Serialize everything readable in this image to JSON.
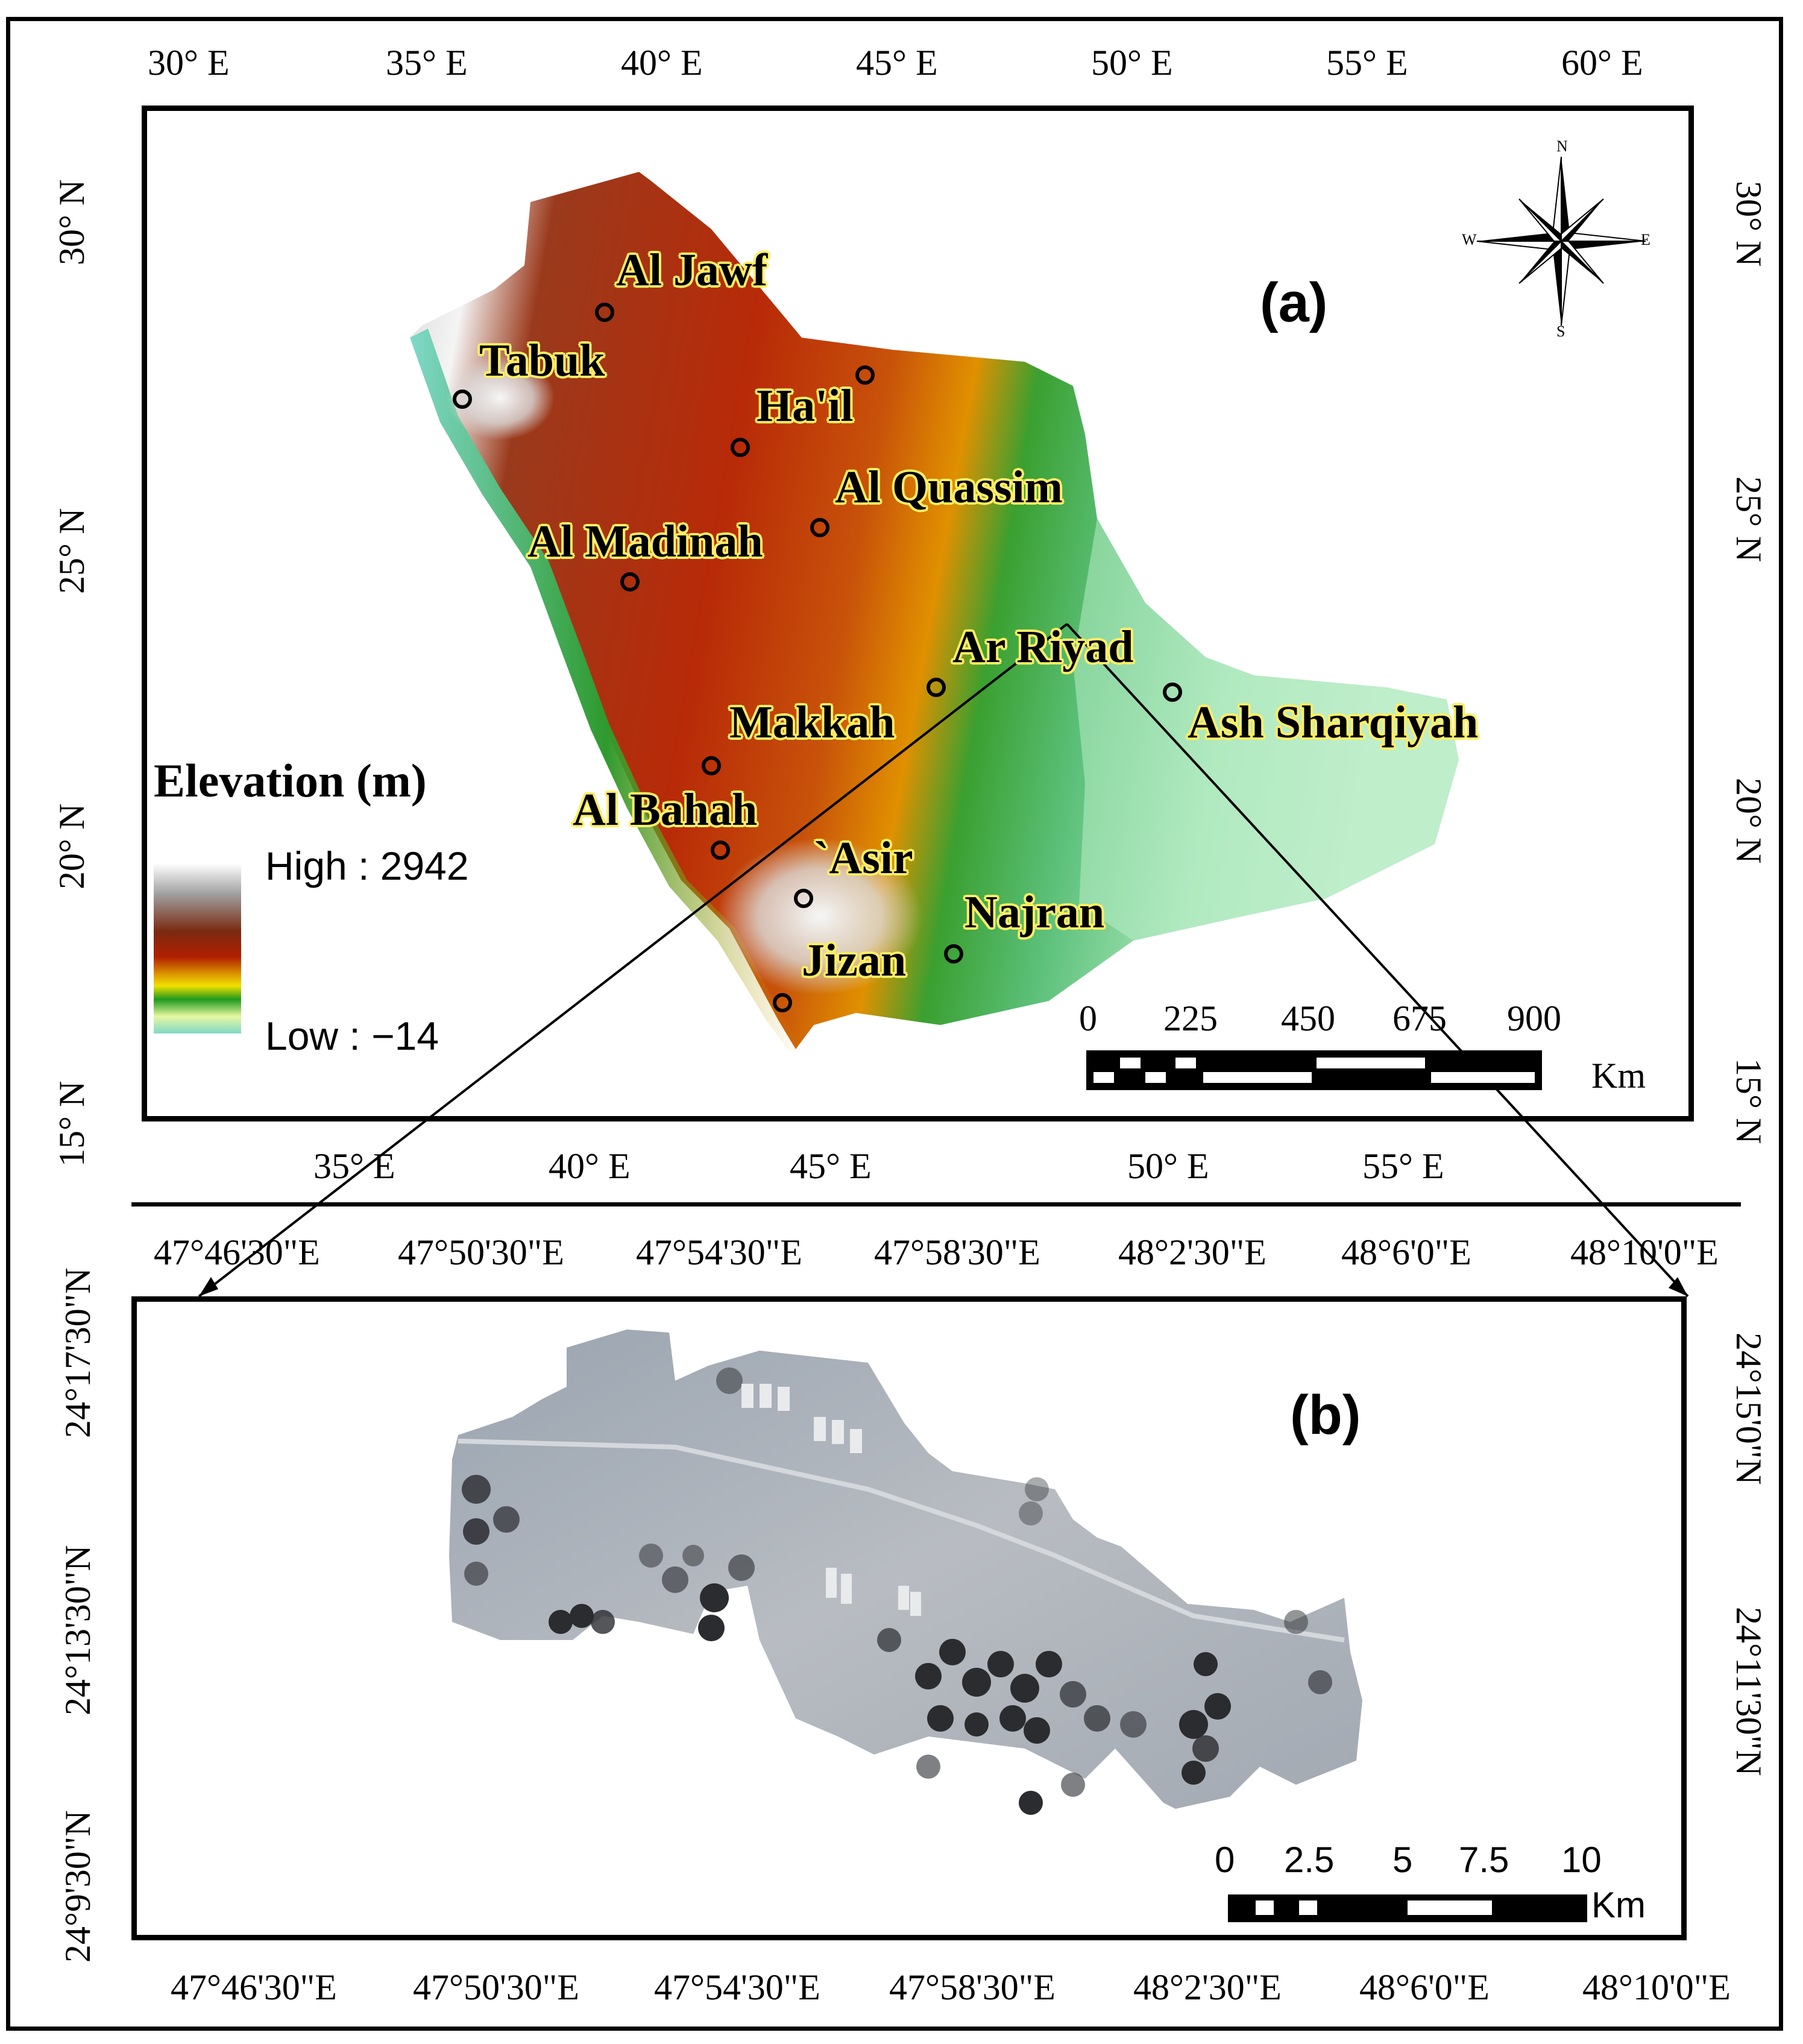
{
  "panel_a": {
    "label": "(a)",
    "top_lon_labels": [
      "30° E",
      "35° E",
      "40° E",
      "45° E",
      "50° E",
      "55° E",
      "60° E"
    ],
    "bottom_lon_labels": [
      "35° E",
      "40° E",
      "45° E",
      "50° E",
      "55° E"
    ],
    "left_lat_labels": [
      "30° N",
      "25° N",
      "20° N",
      "15° N"
    ],
    "right_lat_labels": [
      "30° N",
      "25° N",
      "20° N",
      "15° N"
    ],
    "places": [
      {
        "name": "Al Jawf"
      },
      {
        "name": "Tabuk"
      },
      {
        "name": "Ha'il"
      },
      {
        "name": "Al Quassim"
      },
      {
        "name": "Al Madinah"
      },
      {
        "name": "Ar Riyad"
      },
      {
        "name": "Ash Sharqiyah"
      },
      {
        "name": "Makkah"
      },
      {
        "name": "Al Bahah"
      },
      {
        "name": "`Asir"
      },
      {
        "name": "Najran"
      },
      {
        "name": "Jizan"
      }
    ],
    "legend": {
      "title": "Elevation (m)",
      "high_label": "High : 2942",
      "low_label": "Low : −14",
      "colors": [
        "#ffffff",
        "#a0a0a0",
        "#7a2a10",
        "#b01e00",
        "#e0a000",
        "#f0e000",
        "#1e9a1e",
        "#e8f8a0",
        "#7fd8c8"
      ]
    },
    "scale_bar": {
      "ticks": [
        "0",
        "225",
        "450",
        "675",
        "900"
      ],
      "unit": "Km"
    },
    "compass": {
      "n": "N",
      "s": "S",
      "e": "E",
      "w": "W"
    }
  },
  "panel_b": {
    "label": "(b)",
    "top_lon_labels": [
      "47°46'30\"E",
      "47°50'30\"E",
      "47°54'30\"E",
      "47°58'30\"E",
      "48°2'30\"E",
      "48°6'0\"E",
      "48°10'0\"E"
    ],
    "bottom_lon_labels": [
      "47°46'30\"E",
      "47°50'30\"E",
      "47°54'30\"E",
      "47°58'30\"E",
      "48°2'30\"E",
      "48°6'0\"E",
      "48°10'0\"E"
    ],
    "left_lat_labels": [
      "24°17'30\"N",
      "24°13'30\"N",
      "24°9'30\"N"
    ],
    "right_lat_labels": [
      "24°15'0\"N",
      "24°11'30\"N"
    ],
    "scale_bar": {
      "ticks": [
        "0",
        "2.5",
        "5",
        "7.5",
        "10"
      ],
      "unit": "Km"
    }
  },
  "colors": {
    "map_high": "#f4f4f4",
    "map_mid": "#b32a0c",
    "map_low": "#7fd6c2",
    "satellite_base": "#a9b0ba",
    "pivot_dark": "#2a2c30"
  }
}
